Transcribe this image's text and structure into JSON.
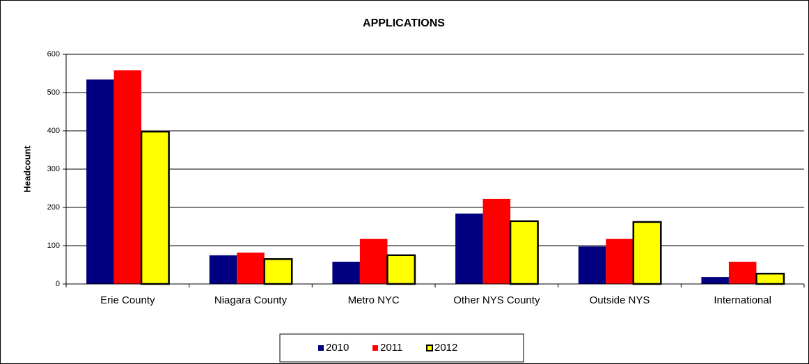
{
  "chart_data": {
    "type": "bar",
    "title": "APPLICATIONS",
    "y_label": "Headcount",
    "categories": [
      "Erie County",
      "Niagara County",
      "Metro NYC",
      "Other NYS County",
      "Outside NYS",
      "International"
    ],
    "series": [
      {
        "name": "2010",
        "color": "#000080",
        "values": [
          534,
          75,
          58,
          184,
          98,
          18
        ]
      },
      {
        "name": "2011",
        "color": "#ff0000",
        "values": [
          558,
          82,
          118,
          222,
          118,
          58
        ]
      },
      {
        "name": "2012",
        "color": "#ffff00",
        "edgecolor": "#000000",
        "values": [
          398,
          65,
          75,
          164,
          162,
          27
        ]
      }
    ],
    "ylim": [
      0,
      600
    ],
    "yticks": [
      0,
      100,
      200,
      300,
      400,
      500,
      600
    ],
    "grid": true,
    "legend": "bottom"
  }
}
